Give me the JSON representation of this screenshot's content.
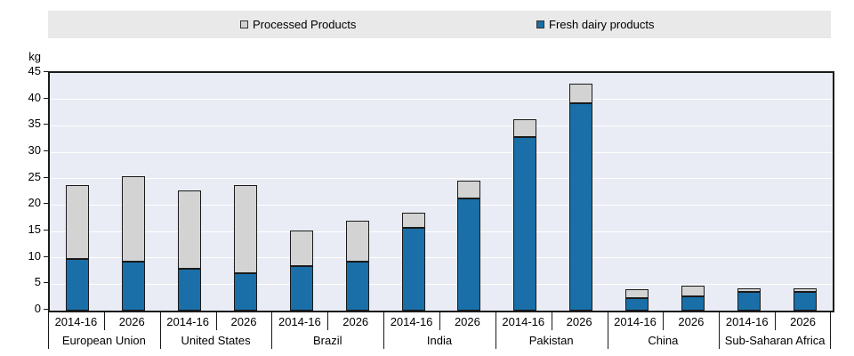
{
  "legend": {
    "items": [
      {
        "label": "Processed Products",
        "color": "#d3d3d3"
      },
      {
        "label": "Fresh dairy products",
        "color": "#1a6fa8"
      }
    ]
  },
  "y_axis": {
    "unit_label": "kg"
  },
  "colors": {
    "plot_background": "#e9ecf4",
    "gridline": "#ffffff",
    "legend_background": "#e9e9e9",
    "outline": "#1a1a1a",
    "fresh_blue": "#1a6fa8",
    "processed_gray": "#d3d3d3"
  },
  "chart_data": {
    "type": "bar",
    "stacked": true,
    "title": "",
    "ylabel": "kg",
    "ylim": [
      0,
      45
    ],
    "ytick_step": 5,
    "grid": true,
    "legend_position": "top",
    "series_names": [
      "Fresh dairy products",
      "Processed Products"
    ],
    "groups": [
      {
        "label": "European Union",
        "bars": [
          {
            "period": "2014-16",
            "fresh": 9.7,
            "processed": 14.0
          },
          {
            "period": "2026",
            "fresh": 9.2,
            "processed": 16.2
          }
        ]
      },
      {
        "label": "United States",
        "bars": [
          {
            "period": "2014-16",
            "fresh": 8.0,
            "processed": 14.7
          },
          {
            "period": "2026",
            "fresh": 7.0,
            "processed": 16.7
          }
        ]
      },
      {
        "label": "Brazil",
        "bars": [
          {
            "period": "2014-16",
            "fresh": 8.5,
            "processed": 6.6
          },
          {
            "period": "2026",
            "fresh": 9.3,
            "processed": 7.8
          }
        ]
      },
      {
        "label": "India",
        "bars": [
          {
            "period": "2014-16",
            "fresh": 15.7,
            "processed": 2.8
          },
          {
            "period": "2026",
            "fresh": 21.2,
            "processed": 3.4
          }
        ]
      },
      {
        "label": "Pakistan",
        "bars": [
          {
            "period": "2014-16",
            "fresh": 32.8,
            "processed": 3.4
          },
          {
            "period": "2026",
            "fresh": 39.3,
            "processed": 3.6
          }
        ]
      },
      {
        "label": "China",
        "bars": [
          {
            "period": "2014-16",
            "fresh": 2.4,
            "processed": 1.7
          },
          {
            "period": "2026",
            "fresh": 2.7,
            "processed": 2.1
          }
        ]
      },
      {
        "label": "Sub-Saharan Africa",
        "bars": [
          {
            "period": "2014-16",
            "fresh": 3.6,
            "processed": 0.7
          },
          {
            "period": "2026",
            "fresh": 3.5,
            "processed": 0.7
          }
        ]
      }
    ]
  }
}
